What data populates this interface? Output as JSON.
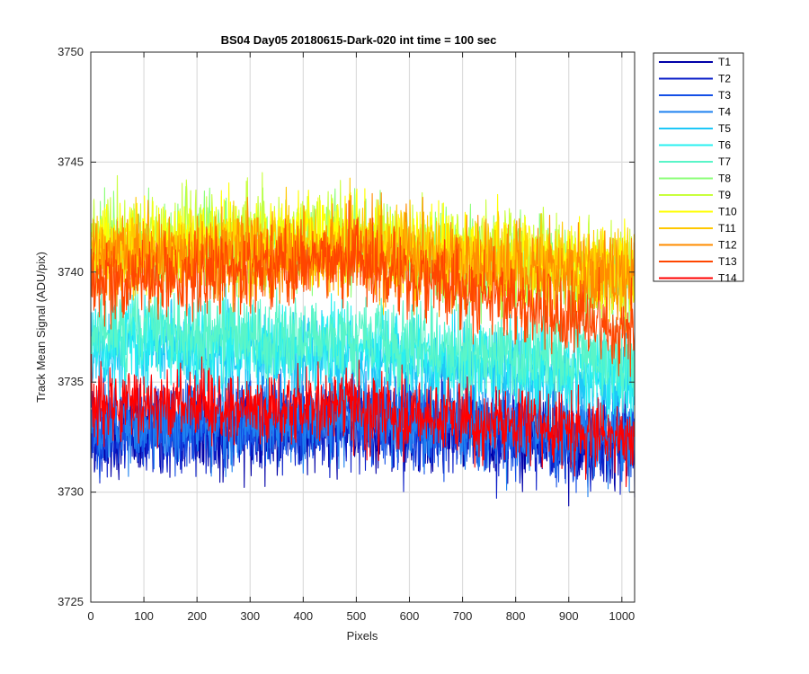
{
  "chart_data": {
    "type": "line",
    "title": "BS04 Day05 20180615-Dark-020 int time = 100 sec",
    "xlabel": "Pixels",
    "ylabel": "Track Mean Signal (ADU/pix)",
    "xlim": [
      0,
      1024
    ],
    "ylim": [
      3725,
      3750
    ],
    "xticks": [
      0,
      100,
      200,
      300,
      400,
      500,
      600,
      700,
      800,
      900,
      1000
    ],
    "yticks": [
      3725,
      3730,
      3735,
      3740,
      3745,
      3750
    ],
    "grid": true,
    "legend_position": "outside-top-right",
    "x": {
      "start": 1,
      "end": 1024,
      "step": 1
    },
    "series": [
      {
        "name": "T1",
        "color": "#0000a8",
        "profile_x": [
          0,
          500,
          1024
        ],
        "profile_y": [
          3732.5,
          3733.0,
          3732.0
        ],
        "noise": 1.3
      },
      {
        "name": "T2",
        "color": "#0a1ec8",
        "profile_x": [
          0,
          500,
          1024
        ],
        "profile_y": [
          3732.7,
          3733.2,
          3732.2
        ],
        "noise": 1.3
      },
      {
        "name": "T3",
        "color": "#1450e6",
        "profile_x": [
          0,
          500,
          1024
        ],
        "profile_y": [
          3732.9,
          3733.4,
          3732.4
        ],
        "noise": 1.3
      },
      {
        "name": "T4",
        "color": "#1e82f0",
        "profile_x": [
          0,
          500,
          1024
        ],
        "profile_y": [
          3733.0,
          3733.5,
          3732.5
        ],
        "noise": 1.3
      },
      {
        "name": "T5",
        "color": "#1ec8f8",
        "profile_x": [
          0,
          500,
          1024
        ],
        "profile_y": [
          3736.5,
          3736.0,
          3735.0
        ],
        "noise": 1.3
      },
      {
        "name": "T6",
        "color": "#28f0f0",
        "profile_x": [
          0,
          500,
          1024
        ],
        "profile_y": [
          3737.0,
          3736.5,
          3735.3
        ],
        "noise": 1.3
      },
      {
        "name": "T7",
        "color": "#5af5c8",
        "profile_x": [
          0,
          500,
          1024
        ],
        "profile_y": [
          3737.3,
          3737.0,
          3735.8
        ],
        "noise": 1.3
      },
      {
        "name": "T8",
        "color": "#8cff78",
        "profile_x": [
          0,
          500,
          1024
        ],
        "profile_y": [
          3741.2,
          3741.2,
          3739.5
        ],
        "noise": 1.3
      },
      {
        "name": "T9",
        "color": "#c8ff3c",
        "profile_x": [
          0,
          500,
          1024
        ],
        "profile_y": [
          3741.5,
          3741.7,
          3740.0
        ],
        "noise": 1.3
      },
      {
        "name": "T10",
        "color": "#ffff00",
        "profile_x": [
          0,
          500,
          1024
        ],
        "profile_y": [
          3741.3,
          3741.6,
          3740.0
        ],
        "noise": 1.3
      },
      {
        "name": "T11",
        "color": "#ffc800",
        "profile_x": [
          0,
          500,
          1024
        ],
        "profile_y": [
          3740.8,
          3741.2,
          3739.8
        ],
        "noise": 1.3
      },
      {
        "name": "T12",
        "color": "#ff8c00",
        "profile_x": [
          0,
          500,
          1024
        ],
        "profile_y": [
          3740.5,
          3741.0,
          3739.5
        ],
        "noise": 1.3
      },
      {
        "name": "T13",
        "color": "#ff4600",
        "profile_x": [
          0,
          500,
          1024
        ],
        "profile_y": [
          3739.5,
          3740.5,
          3737.0
        ],
        "noise": 1.2
      },
      {
        "name": "T14",
        "color": "#ff0000",
        "profile_x": [
          0,
          500,
          1024
        ],
        "profile_y": [
          3734.0,
          3733.8,
          3732.5
        ],
        "noise": 1.1
      }
    ]
  }
}
